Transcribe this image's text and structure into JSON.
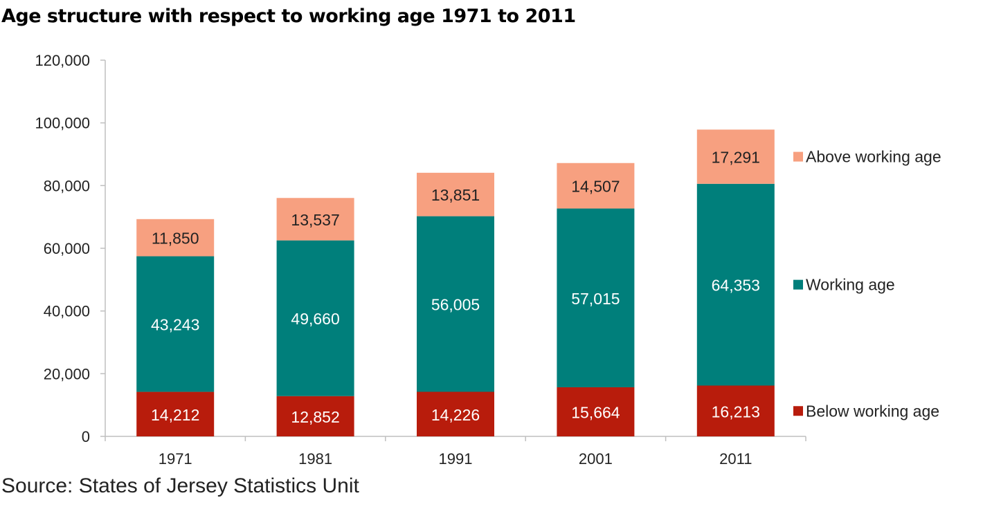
{
  "title": "Age structure with respect to working age 1971 to 2011",
  "source": "Source: States of Jersey Statistics Unit",
  "chart_data": {
    "type": "bar",
    "stacked": true,
    "categories": [
      "1971",
      "1981",
      "1991",
      "2001",
      "2011"
    ],
    "series": [
      {
        "name": "Below working age",
        "color": "#b81c0c",
        "label_color": "#ffffff",
        "values": [
          14212,
          12852,
          14226,
          15664,
          16213
        ]
      },
      {
        "name": "Working age",
        "color": "#007f7b",
        "label_color": "#ffffff",
        "values": [
          43243,
          49660,
          56005,
          57015,
          64353
        ]
      },
      {
        "name": "Above working age",
        "color": "#f7a080",
        "label_color": "#222222",
        "values": [
          11850,
          13537,
          13851,
          14507,
          17291
        ]
      }
    ],
    "data_labels": [
      [
        "14,212",
        "12,852",
        "14,226",
        "15,664",
        "16,213"
      ],
      [
        "43,243",
        "49,660",
        "56,005",
        "57,015",
        "64,353"
      ],
      [
        "11,850",
        "13,537",
        "13,851",
        "14,507",
        "17,291"
      ]
    ],
    "ylim": [
      0,
      120000
    ],
    "yticks": [
      0,
      20000,
      40000,
      60000,
      80000,
      100000,
      120000
    ],
    "ytick_labels": [
      "0",
      "20,000",
      "40,000",
      "60,000",
      "80,000",
      "100,000",
      "120,000"
    ],
    "grid": false,
    "legend": "right",
    "xlabel": "",
    "ylabel": ""
  }
}
